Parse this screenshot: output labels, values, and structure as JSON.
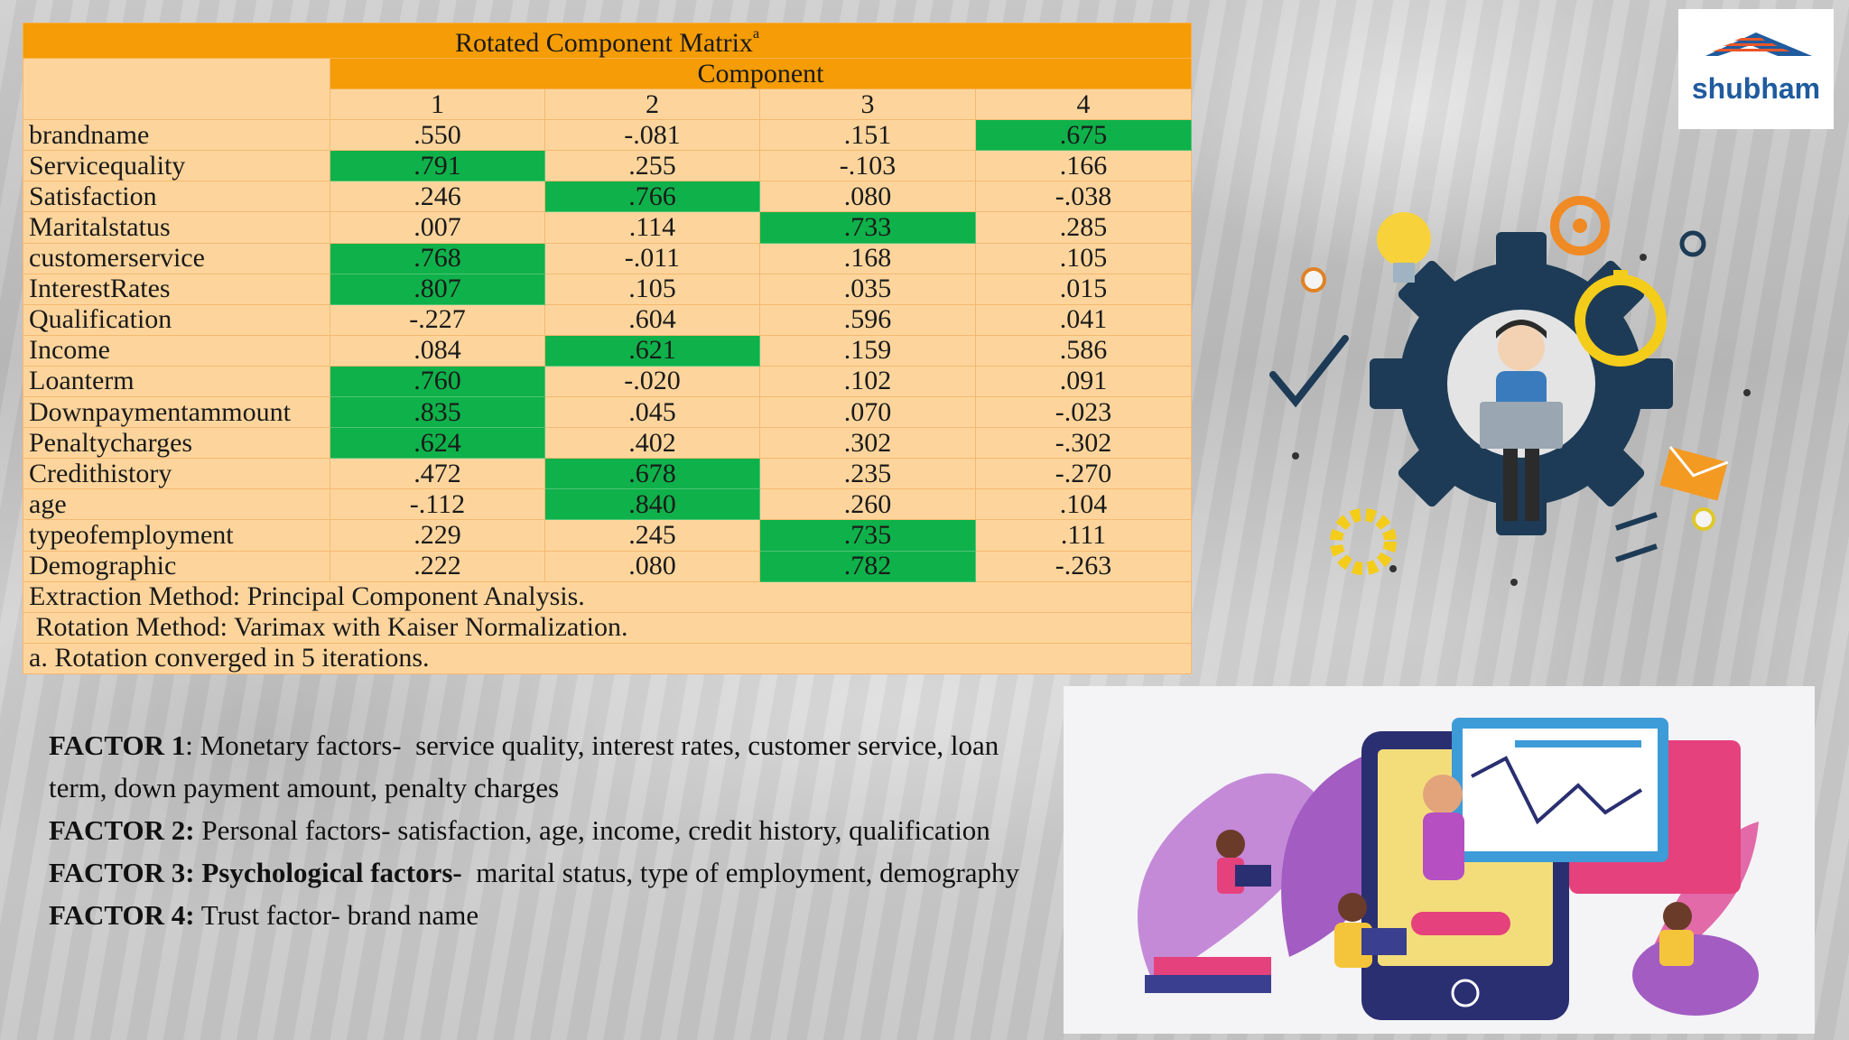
{
  "matrix": {
    "title": "Rotated Component Matrix",
    "title_sup": "a",
    "group_header": "Component",
    "columns": [
      "1",
      "2",
      "3",
      "4"
    ],
    "rows": [
      {
        "label": "brandname",
        "values": [
          ".550",
          "-.081",
          ".151",
          ".675"
        ],
        "highlight": [
          false,
          false,
          false,
          true
        ]
      },
      {
        "label": "Servicequality",
        "values": [
          ".791",
          ".255",
          "-.103",
          ".166"
        ],
        "highlight": [
          true,
          false,
          false,
          false
        ]
      },
      {
        "label": "Satisfaction",
        "values": [
          ".246",
          ".766",
          ".080",
          "-.038"
        ],
        "highlight": [
          false,
          true,
          false,
          false
        ]
      },
      {
        "label": "Maritalstatus",
        "values": [
          ".007",
          ".114",
          ".733",
          ".285"
        ],
        "highlight": [
          false,
          false,
          true,
          false
        ]
      },
      {
        "label": "customerservice",
        "values": [
          ".768",
          "-.011",
          ".168",
          ".105"
        ],
        "highlight": [
          true,
          false,
          false,
          false
        ]
      },
      {
        "label": "InterestRates",
        "values": [
          ".807",
          ".105",
          ".035",
          ".015"
        ],
        "highlight": [
          true,
          false,
          false,
          false
        ]
      },
      {
        "label": "Qualification",
        "values": [
          "-.227",
          ".604",
          ".596",
          ".041"
        ],
        "highlight": [
          false,
          false,
          false,
          false
        ]
      },
      {
        "label": "Income",
        "values": [
          ".084",
          ".621",
          ".159",
          ".586"
        ],
        "highlight": [
          false,
          true,
          false,
          false
        ]
      },
      {
        "label": "Loanterm",
        "values": [
          ".760",
          "-.020",
          ".102",
          ".091"
        ],
        "highlight": [
          true,
          false,
          false,
          false
        ]
      },
      {
        "label": "Downpaymentammount",
        "values": [
          ".835",
          ".045",
          ".070",
          "-.023"
        ],
        "highlight": [
          true,
          false,
          false,
          false
        ]
      },
      {
        "label": "Penaltycharges",
        "values": [
          ".624",
          ".402",
          ".302",
          "-.302"
        ],
        "highlight": [
          true,
          false,
          false,
          false
        ]
      },
      {
        "label": "Credithistory",
        "values": [
          ".472",
          ".678",
          ".235",
          "-.270"
        ],
        "highlight": [
          false,
          true,
          false,
          false
        ]
      },
      {
        "label": "age",
        "values": [
          "-.112",
          ".840",
          ".260",
          ".104"
        ],
        "highlight": [
          false,
          true,
          false,
          false
        ]
      },
      {
        "label": "typeofemployment",
        "values": [
          ".229",
          ".245",
          ".735",
          ".111"
        ],
        "highlight": [
          false,
          false,
          true,
          false
        ]
      },
      {
        "label": "Demographic",
        "values": [
          ".222",
          ".080",
          ".782",
          "-.263"
        ],
        "highlight": [
          false,
          false,
          true,
          false
        ]
      }
    ],
    "notes": [
      "Extraction Method: Principal Component Analysis.",
      " Rotation Method: Varimax with Kaiser Normalization.",
      "a. Rotation converged in 5 iterations."
    ],
    "colors": {
      "header": "#f59c06",
      "cell": "#fdd59c",
      "highlight": "#0fb14a"
    }
  },
  "factors": [
    {
      "label": "FACTOR 1",
      "text": ": Monetary factors-  service quality, interest rates, customer service, loan term, down payment amount, penalty charges"
    },
    {
      "label": "FACTOR 2:",
      "text": " Personal factors- satisfaction, age, income, credit history, qualification"
    },
    {
      "label": "FACTOR 3: Psychological factors-",
      "text": "  marital status, type of employment, demography"
    },
    {
      "label": "FACTOR 4:",
      "text": " Trust factor- brand name"
    }
  ],
  "logo": {
    "text": "shubham",
    "color": "#1f5b9e",
    "roof_color": "#e8562a"
  },
  "illustrations": {
    "gear": "gear-with-person-laptop-icon",
    "panel": "people-with-tablet-chart-icon"
  }
}
